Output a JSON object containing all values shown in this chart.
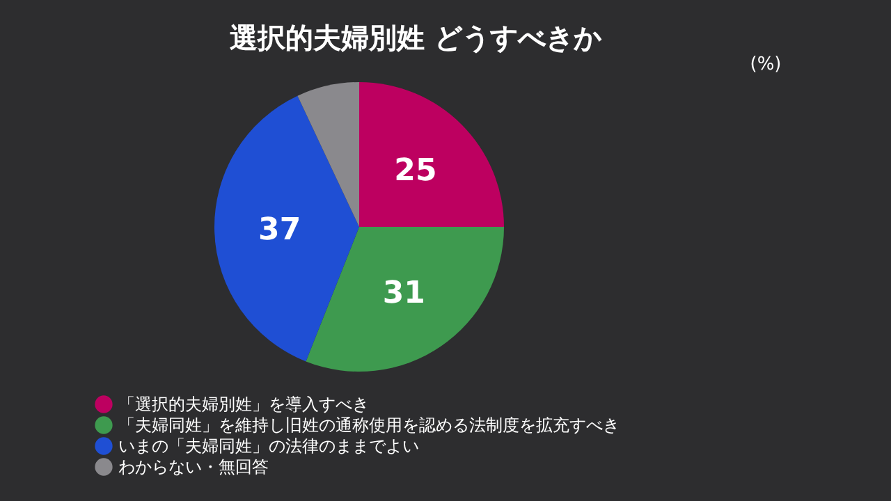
{
  "chart_data": {
    "type": "pie",
    "title": "選択的夫婦別姓 どうすべきか",
    "categories": [
      "「選択的夫婦別姓」を導入すべき",
      "「夫婦同姓」を維持し旧姓の通称使用を認める法制度を拡充すべき",
      "いまの「夫婦同姓」の法律のままでよい",
      "わからない・無回答"
    ],
    "values": [
      25,
      31,
      37,
      7
    ],
    "colors": [
      "#bd0060",
      "#3e9a4f",
      "#1f4fd4",
      "#8a898d"
    ],
    "value_labels": [
      "25",
      "31",
      "37",
      null
    ],
    "annotations": [
      "(%)"
    ],
    "legend": "bottom left"
  }
}
